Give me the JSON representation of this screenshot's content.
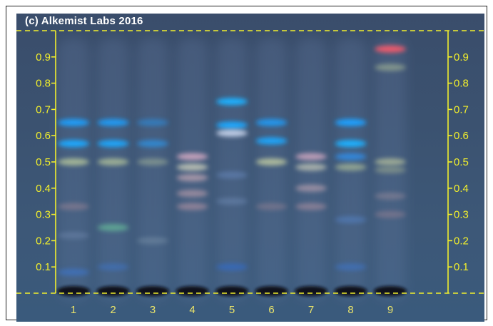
{
  "watermark": "(c) Alkemist Labs 2016",
  "rf_scale": {
    "labels": [
      "0.1",
      "0.2",
      "0.3",
      "0.4",
      "0.5",
      "0.6",
      "0.7",
      "0.8",
      "0.9"
    ],
    "values": [
      0.1,
      0.2,
      0.3,
      0.4,
      0.5,
      0.6,
      0.7,
      0.8,
      0.9
    ],
    "range": [
      0,
      1
    ],
    "color": "#f2ef2c"
  },
  "lanes": [
    {
      "label": "1",
      "bands": [
        {
          "rf": 0.65,
          "color": "#1aa0ff",
          "strength": 0.95
        },
        {
          "rf": 0.57,
          "color": "#1aa8ff",
          "strength": 1.0
        },
        {
          "rf": 0.5,
          "color": "#c9d9a0",
          "strength": 0.7
        },
        {
          "rf": 0.33,
          "color": "#c99aa0",
          "strength": 0.35
        },
        {
          "rf": 0.22,
          "color": "#8aa0c8",
          "strength": 0.3
        },
        {
          "rf": 0.08,
          "color": "#3a7be0",
          "strength": 0.5
        }
      ]
    },
    {
      "label": "2",
      "bands": [
        {
          "rf": 0.65,
          "color": "#1aa0ff",
          "strength": 0.9
        },
        {
          "rf": 0.57,
          "color": "#1aa8ff",
          "strength": 0.95
        },
        {
          "rf": 0.5,
          "color": "#c9d9a0",
          "strength": 0.65
        },
        {
          "rf": 0.25,
          "color": "#6fd6a0",
          "strength": 0.55
        },
        {
          "rf": 0.1,
          "color": "#3a7be0",
          "strength": 0.4
        }
      ]
    },
    {
      "label": "3",
      "bands": [
        {
          "rf": 0.65,
          "color": "#2a8ee0",
          "strength": 0.6
        },
        {
          "rf": 0.57,
          "color": "#2a98ee",
          "strength": 0.7
        },
        {
          "rf": 0.5,
          "color": "#b8c8a0",
          "strength": 0.45
        },
        {
          "rf": 0.2,
          "color": "#9ab0c0",
          "strength": 0.3
        }
      ]
    },
    {
      "label": "4",
      "bands": [
        {
          "rf": 0.52,
          "color": "#e0b0c8",
          "strength": 0.8
        },
        {
          "rf": 0.48,
          "color": "#d8d8c0",
          "strength": 0.75
        },
        {
          "rf": 0.44,
          "color": "#e0b8c0",
          "strength": 0.6
        },
        {
          "rf": 0.38,
          "color": "#e0b0b8",
          "strength": 0.5
        },
        {
          "rf": 0.33,
          "color": "#e0a8b0",
          "strength": 0.45
        }
      ]
    },
    {
      "label": "5",
      "bands": [
        {
          "rf": 0.73,
          "color": "#1ab0ff",
          "strength": 1.0
        },
        {
          "rf": 0.64,
          "color": "#1aa8ff",
          "strength": 1.0
        },
        {
          "rf": 0.61,
          "color": "#dde8ff",
          "strength": 0.8
        },
        {
          "rf": 0.45,
          "color": "#7aa0e0",
          "strength": 0.35
        },
        {
          "rf": 0.35,
          "color": "#8aa8d8",
          "strength": 0.3
        },
        {
          "rf": 0.1,
          "color": "#2a6ee0",
          "strength": 0.5
        }
      ]
    },
    {
      "label": "6",
      "bands": [
        {
          "rf": 0.65,
          "color": "#1aa0ff",
          "strength": 0.85
        },
        {
          "rf": 0.58,
          "color": "#1aa8ff",
          "strength": 0.95
        },
        {
          "rf": 0.5,
          "color": "#d8e0a8",
          "strength": 0.7
        },
        {
          "rf": 0.33,
          "color": "#c99aa0",
          "strength": 0.3
        }
      ]
    },
    {
      "label": "7",
      "bands": [
        {
          "rf": 0.52,
          "color": "#e0b0c8",
          "strength": 0.75
        },
        {
          "rf": 0.48,
          "color": "#d8d8c0",
          "strength": 0.65
        },
        {
          "rf": 0.4,
          "color": "#e0b8c0",
          "strength": 0.5
        },
        {
          "rf": 0.33,
          "color": "#e0a8b0",
          "strength": 0.4
        }
      ]
    },
    {
      "label": "8",
      "bands": [
        {
          "rf": 0.65,
          "color": "#1aa0ff",
          "strength": 1.0
        },
        {
          "rf": 0.57,
          "color": "#1ab0ff",
          "strength": 1.0
        },
        {
          "rf": 0.52,
          "color": "#2a98ff",
          "strength": 0.7
        },
        {
          "rf": 0.48,
          "color": "#c9d9a0",
          "strength": 0.55
        },
        {
          "rf": 0.28,
          "color": "#5a90e0",
          "strength": 0.4
        },
        {
          "rf": 0.1,
          "color": "#3a7be0",
          "strength": 0.45
        }
      ]
    },
    {
      "label": "9",
      "bands": [
        {
          "rf": 0.93,
          "color": "#ff5a6a",
          "strength": 0.9
        },
        {
          "rf": 0.86,
          "color": "#c8d8a0",
          "strength": 0.45
        },
        {
          "rf": 0.5,
          "color": "#c8d0a0",
          "strength": 0.65
        },
        {
          "rf": 0.47,
          "color": "#9aa890",
          "strength": 0.6
        },
        {
          "rf": 0.37,
          "color": "#c0a0a8",
          "strength": 0.35
        },
        {
          "rf": 0.3,
          "color": "#d09aa0",
          "strength": 0.3
        }
      ]
    }
  ]
}
